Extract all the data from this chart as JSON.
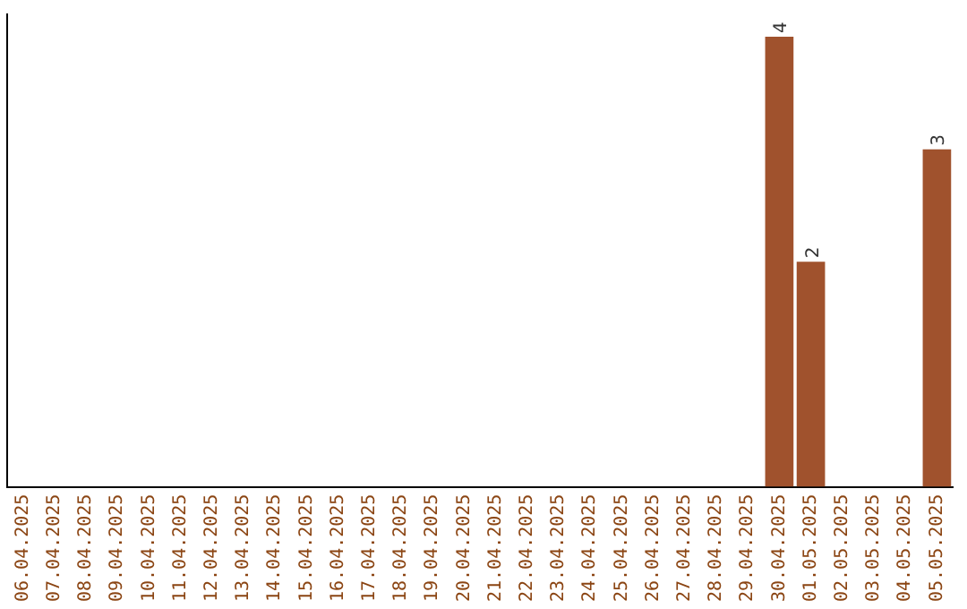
{
  "chart_data": {
    "type": "bar",
    "categories": [
      "06.04.2025",
      "07.04.2025",
      "08.04.2025",
      "09.04.2025",
      "10.04.2025",
      "11.04.2025",
      "12.04.2025",
      "13.04.2025",
      "14.04.2025",
      "15.04.2025",
      "16.04.2025",
      "17.04.2025",
      "18.04.2025",
      "19.04.2025",
      "20.04.2025",
      "21.04.2025",
      "22.04.2025",
      "23.04.2025",
      "24.04.2025",
      "25.04.2025",
      "26.04.2025",
      "27.04.2025",
      "28.04.2025",
      "29.04.2025",
      "30.04.2025",
      "01.05.2025",
      "02.05.2025",
      "03.05.2025",
      "04.05.2025",
      "05.05.2025"
    ],
    "values": [
      null,
      null,
      null,
      null,
      null,
      null,
      null,
      null,
      null,
      null,
      null,
      null,
      null,
      null,
      null,
      null,
      null,
      null,
      null,
      null,
      null,
      null,
      null,
      null,
      4,
      2,
      null,
      null,
      null,
      3
    ],
    "color": "#a0522d",
    "ylim": [
      0,
      4.2
    ],
    "tick_labels": "x",
    "data_labels": true,
    "grid": false,
    "legend": false
  }
}
